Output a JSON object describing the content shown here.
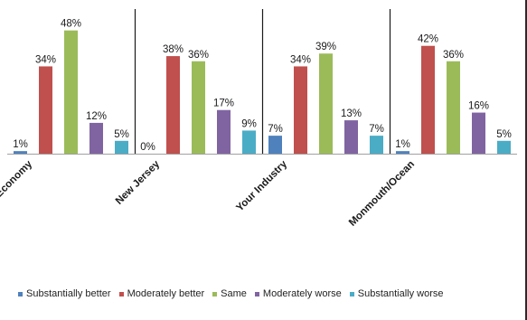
{
  "chart_data": {
    "type": "bar",
    "categories": [
      "U.S. Economy",
      "New Jersey",
      "Your Industry",
      "Monmouth/Ocean"
    ],
    "series": [
      {
        "name": "Substantially better",
        "color": "#4f81bd",
        "values": [
          1,
          0,
          7,
          1
        ]
      },
      {
        "name": "Moderately better",
        "color": "#c0504d",
        "values": [
          34,
          38,
          34,
          42
        ]
      },
      {
        "name": "Same",
        "color": "#9bbb59",
        "values": [
          48,
          36,
          39,
          36
        ]
      },
      {
        "name": "Moderately worse",
        "color": "#8064a2",
        "values": [
          12,
          17,
          13,
          16
        ]
      },
      {
        "name": "Substantially worse",
        "color": "#4bacc6",
        "values": [
          5,
          9,
          7,
          5
        ]
      }
    ],
    "value_suffix": "%",
    "ylim": [
      0,
      50
    ],
    "grid": false,
    "legend_position": "bottom"
  }
}
